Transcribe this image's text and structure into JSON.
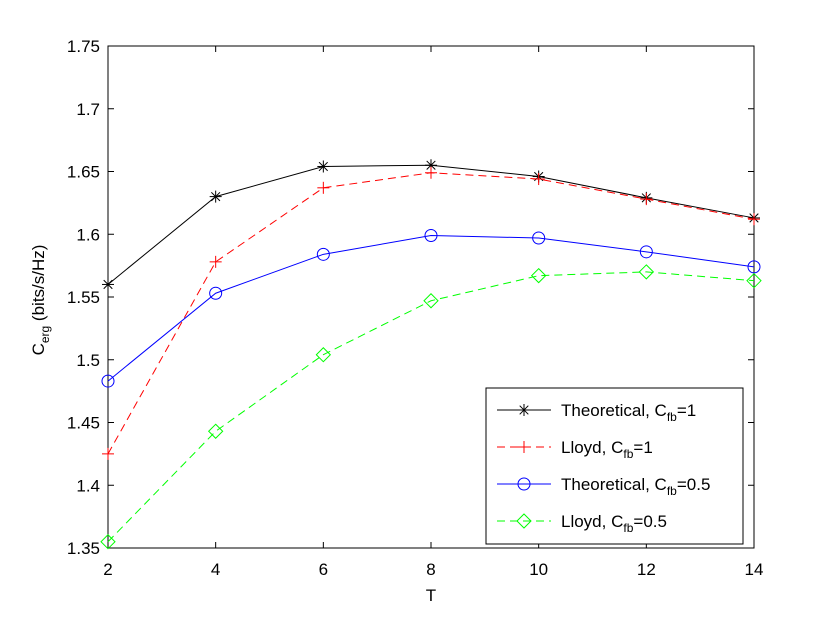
{
  "chart_data": {
    "type": "line",
    "title": "",
    "xlabel": "T",
    "ylabel": {
      "main": "C",
      "sub": "erg",
      "rest": " (bits/s/Hz)"
    },
    "x": [
      2,
      4,
      6,
      8,
      10,
      12,
      14
    ],
    "xlim": [
      2,
      14
    ],
    "ylim": [
      1.35,
      1.75
    ],
    "xticks": [
      "2",
      "4",
      "6",
      "8",
      "10",
      "12",
      "14"
    ],
    "yticks": [
      "1.35",
      "1.4",
      "1.45",
      "1.5",
      "1.55",
      "1.6",
      "1.65",
      "1.7",
      "1.75"
    ],
    "grid": false,
    "legend_position": "bottom-right",
    "series": [
      {
        "name": "Theoretical, C_fb=1",
        "label": {
          "a": "Theoretical, C",
          "sub": "fb",
          "b": "=1"
        },
        "color": "#000000",
        "dash": "solid",
        "marker": "asterisk",
        "values": [
          1.56,
          1.63,
          1.654,
          1.655,
          1.646,
          1.629,
          1.613
        ]
      },
      {
        "name": "Lloyd, C_fb=1",
        "label": {
          "a": "Lloyd, C",
          "sub": "fb",
          "b": "=1"
        },
        "color": "#ff0000",
        "dash": "dashed",
        "marker": "plus",
        "values": [
          1.425,
          1.578,
          1.637,
          1.649,
          1.644,
          1.628,
          1.612
        ]
      },
      {
        "name": "Theoretical, C_fb=0.5",
        "label": {
          "a": "Theoretical, C",
          "sub": "fb",
          "b": "=0.5"
        },
        "color": "#0000ff",
        "dash": "solid",
        "marker": "circle",
        "values": [
          1.483,
          1.553,
          1.584,
          1.599,
          1.597,
          1.586,
          1.574
        ]
      },
      {
        "name": "Lloyd, C_fb=0.5",
        "label": {
          "a": "Lloyd, C",
          "sub": "fb",
          "b": "=0.5"
        },
        "color": "#00ff00",
        "dash": "dashed",
        "marker": "diamond",
        "values": [
          1.355,
          1.443,
          1.504,
          1.547,
          1.567,
          1.57,
          1.563
        ]
      }
    ]
  }
}
